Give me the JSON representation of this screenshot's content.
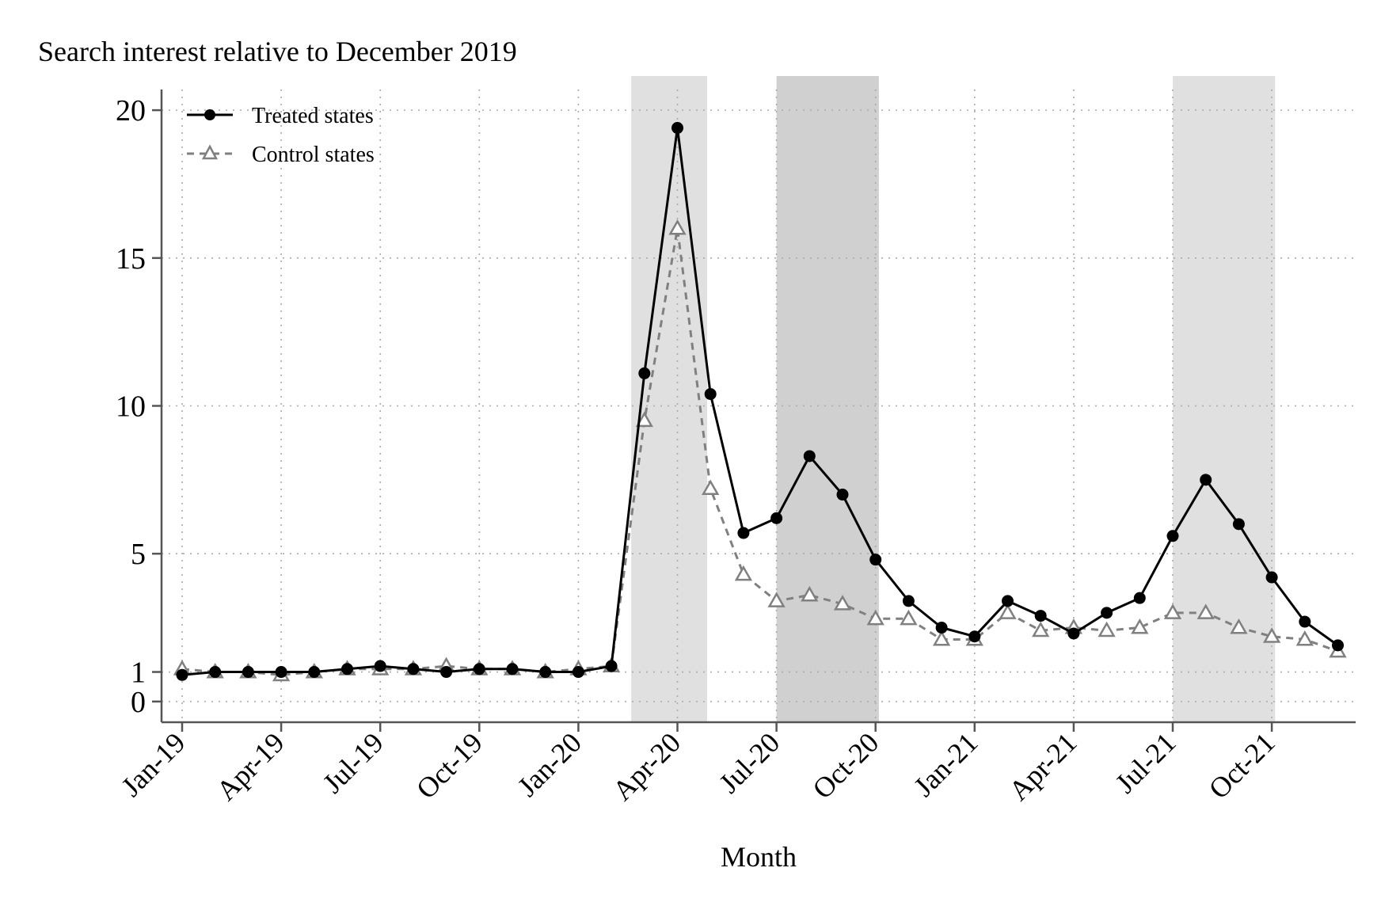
{
  "chart_data": {
    "type": "line",
    "title": "Search interest relative to December 2019",
    "xlabel": "Month",
    "ylabel": "",
    "ylim": [
      -0.7,
      20.7
    ],
    "yticks": [
      0,
      1,
      5,
      10,
      15,
      20
    ],
    "ytick_labels": [
      "0",
      "1",
      "5",
      "10",
      "15",
      "20"
    ],
    "x_tick_labels": [
      "Jan-19",
      "Apr-19",
      "Jul-19",
      "Oct-19",
      "Jan-20",
      "Apr-20",
      "Jul-20",
      "Oct-20",
      "Jan-21",
      "Apr-21",
      "Jul-21",
      "Oct-21"
    ],
    "x_tick_indices": [
      0,
      3,
      6,
      9,
      12,
      15,
      18,
      21,
      24,
      27,
      30,
      33
    ],
    "grid": true,
    "legend_position": "top-left",
    "shaded_periods": [
      {
        "start": 13.6,
        "end": 15.9,
        "shade": "#e0e0e0"
      },
      {
        "start": 18.0,
        "end": 21.1,
        "shade": "#d0d0d0"
      },
      {
        "start": 30.0,
        "end": 33.1,
        "shade": "#e0e0e0"
      }
    ],
    "series": [
      {
        "name": "Treated states",
        "color": "#000000",
        "marker": "circle",
        "dash": "solid",
        "values": [
          0.9,
          1.0,
          1.0,
          1.0,
          1.0,
          1.1,
          1.2,
          1.1,
          1.0,
          1.1,
          1.1,
          1.0,
          1.0,
          1.2,
          11.1,
          19.4,
          10.4,
          5.7,
          6.2,
          8.3,
          7.0,
          4.8,
          3.4,
          2.5,
          2.2,
          3.4,
          2.9,
          2.3,
          3.0,
          3.5,
          5.6,
          7.5,
          6.0,
          4.2,
          2.7,
          1.9
        ],
        "x_index_offset": 0
      },
      {
        "name": "Control states",
        "color": "#808080",
        "marker": "triangle",
        "dash": "dashed",
        "values": [
          1.1,
          1.0,
          1.0,
          0.9,
          1.0,
          1.1,
          1.1,
          1.1,
          1.2,
          1.1,
          1.1,
          1.0,
          1.1,
          1.2,
          9.5,
          16.0,
          7.2,
          4.3,
          3.4,
          3.6,
          3.3,
          2.8,
          2.8,
          2.1,
          2.1,
          3.0,
          2.4,
          2.5,
          2.4,
          2.5,
          3.0,
          3.0,
          2.5,
          2.2,
          2.1,
          1.7
        ],
        "x_index_offset": 0
      }
    ]
  }
}
